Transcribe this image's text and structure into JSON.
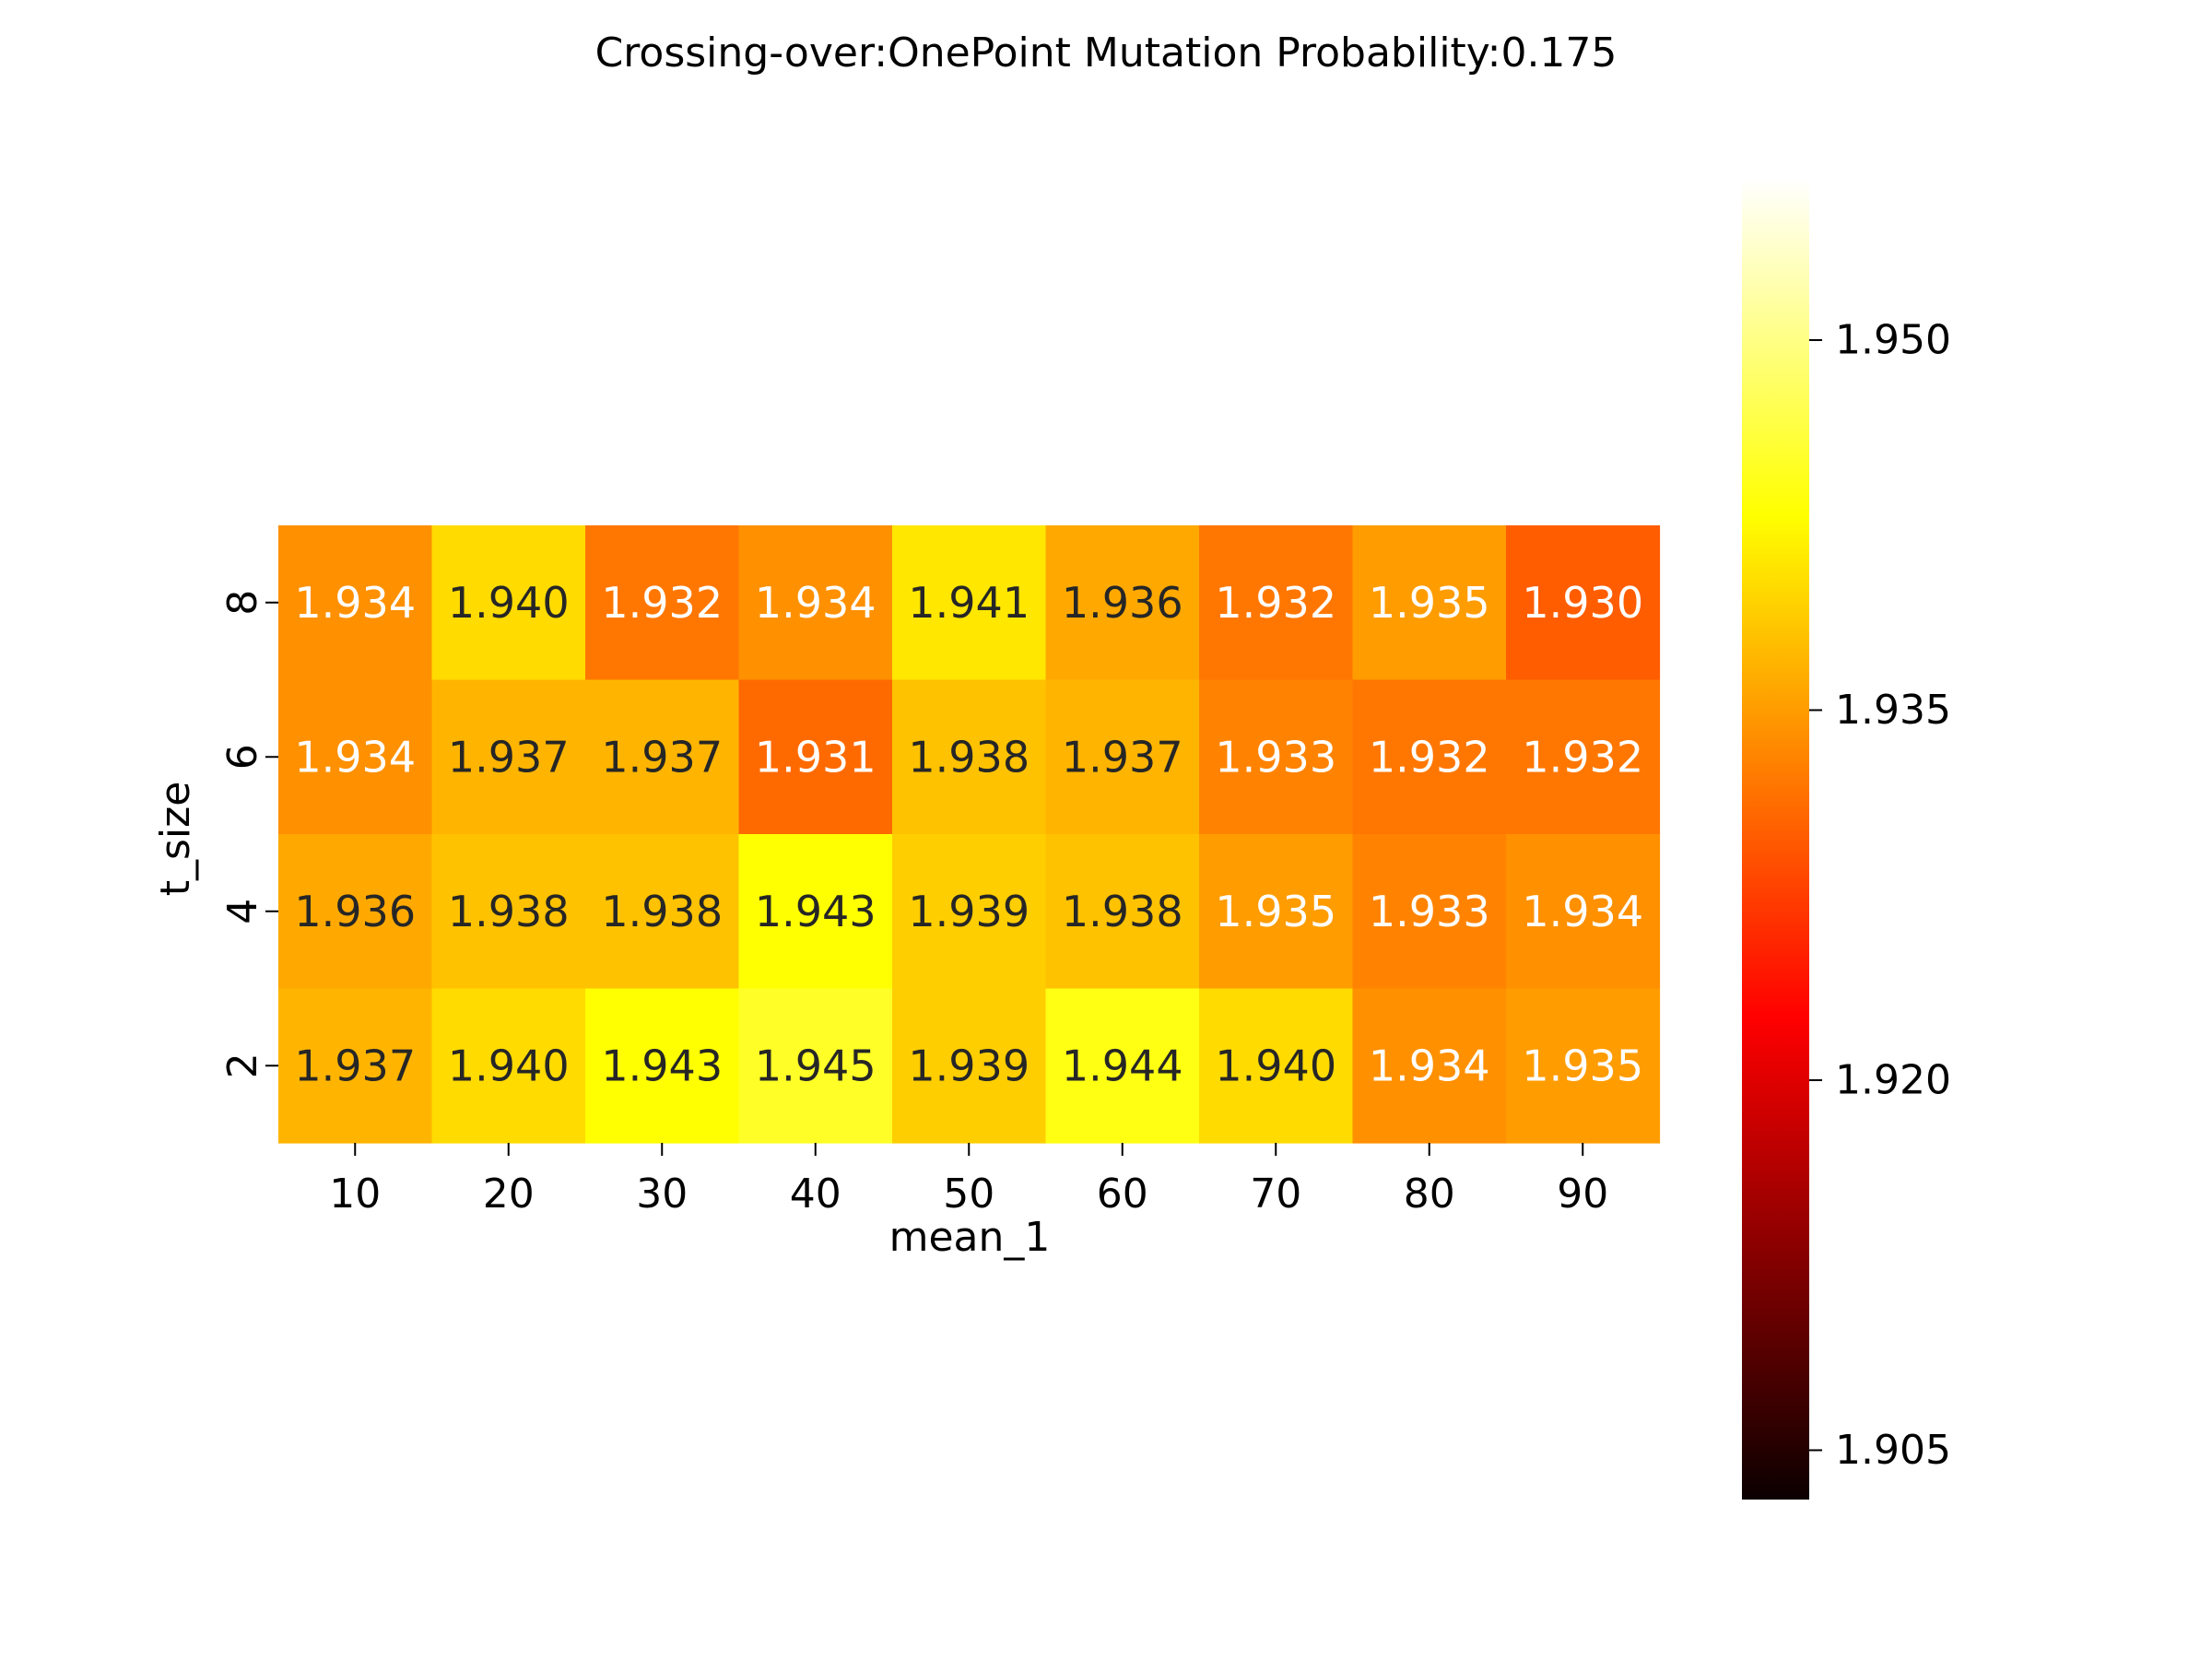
{
  "chart_data": {
    "type": "heatmap",
    "title": "Crossing-over:OnePoint Mutation Probability:0.175",
    "xlabel": "mean_1",
    "ylabel": "t_size",
    "x_categories": [
      "10",
      "20",
      "30",
      "40",
      "50",
      "60",
      "70",
      "80",
      "90"
    ],
    "y_categories": [
      "8",
      "6",
      "4",
      "2"
    ],
    "values": [
      [
        1.934,
        1.94,
        1.932,
        1.934,
        1.941,
        1.936,
        1.932,
        1.935,
        1.93
      ],
      [
        1.934,
        1.937,
        1.937,
        1.931,
        1.938,
        1.937,
        1.933,
        1.932,
        1.932
      ],
      [
        1.936,
        1.938,
        1.938,
        1.943,
        1.939,
        1.938,
        1.935,
        1.933,
        1.934
      ],
      [
        1.937,
        1.94,
        1.943,
        1.945,
        1.939,
        1.944,
        1.94,
        1.934,
        1.935
      ]
    ],
    "value_labels": [
      [
        "1.934",
        "1.940",
        "1.932",
        "1.934",
        "1.941",
        "1.936",
        "1.932",
        "1.935",
        "1.930"
      ],
      [
        "1.934",
        "1.937",
        "1.937",
        "1.931",
        "1.938",
        "1.937",
        "1.933",
        "1.932",
        "1.932"
      ],
      [
        "1.936",
        "1.938",
        "1.938",
        "1.943",
        "1.939",
        "1.938",
        "1.935",
        "1.933",
        "1.934"
      ],
      [
        "1.937",
        "1.940",
        "1.943",
        "1.945",
        "1.939",
        "1.944",
        "1.940",
        "1.934",
        "1.935"
      ]
    ],
    "colormap": "hot",
    "colorbar": {
      "range": [
        1.903,
        1.9565
      ],
      "ticks": [
        1.905,
        1.92,
        1.935,
        1.95
      ],
      "tick_labels": [
        "1.905",
        "1.920",
        "1.935",
        "1.950"
      ]
    },
    "grid": false,
    "legend": "colorbar-right"
  }
}
